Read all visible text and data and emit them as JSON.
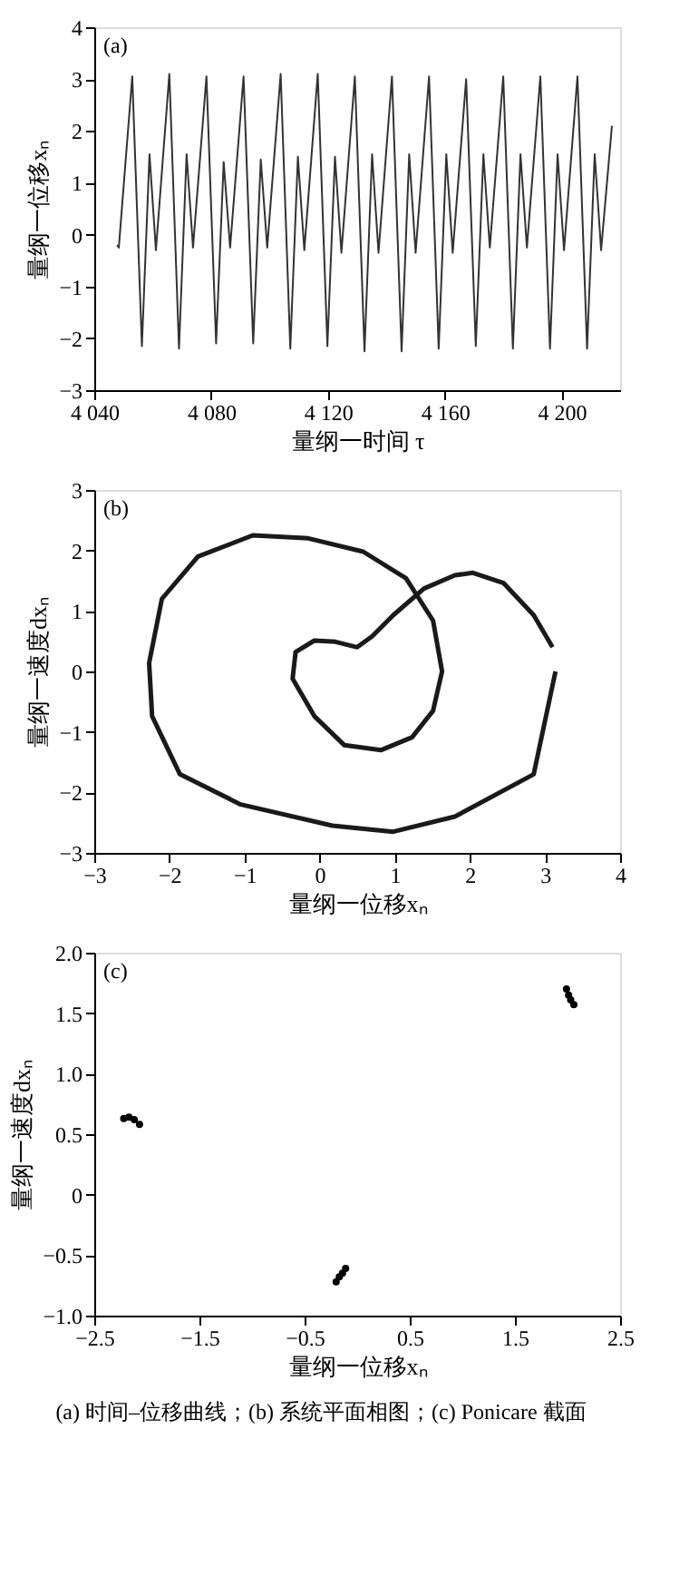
{
  "chart_data": [
    {
      "type": "line",
      "xlabel": "量纲一时间 τ",
      "ylabel": "量纲一位移xₙ",
      "annotations": [
        "(a)"
      ],
      "xlim": [
        4040,
        4220
      ],
      "ylim": [
        -3,
        4
      ],
      "xticks": [
        {
          "value": 4040,
          "label": "4 040"
        },
        {
          "value": 4080,
          "label": "4 080"
        },
        {
          "value": 4120,
          "label": "4 120"
        },
        {
          "value": 4160,
          "label": "4 160"
        },
        {
          "value": 4200,
          "label": "4 200"
        }
      ],
      "yticks": [
        -3,
        -2,
        -1,
        0,
        1,
        2,
        3,
        4
      ],
      "marker": "none",
      "line_style": "solid",
      "series": [
        {
          "color": "#333333",
          "x": [
            4047.8,
            4048.4,
            4053.0,
            4056.3,
            4058.9,
            4061.1,
            4065.7,
            4069.0,
            4071.6,
            4073.8,
            4078.4,
            4081.7,
            4084.3,
            4086.5,
            4091.1,
            4094.4,
            4097.0,
            4099.2,
            4103.8,
            4107.1,
            4109.7,
            4111.9,
            4116.5,
            4119.8,
            4122.4,
            4124.6,
            4129.2,
            4132.5,
            4135.1,
            4137.3,
            4141.9,
            4145.2,
            4147.8,
            4150.0,
            4154.6,
            4157.9,
            4160.5,
            4162.7,
            4167.3,
            4170.6,
            4173.2,
            4175.4,
            4180.0,
            4183.3,
            4185.9,
            4188.1,
            4192.7,
            4196.0,
            4198.6,
            4200.8,
            4205.4,
            4208.7,
            4211.3,
            4213.5,
            4217.2
          ],
          "values": [
            -0.2,
            -0.25,
            3.05,
            -2.15,
            1.55,
            -0.3,
            3.1,
            -2.2,
            1.55,
            -0.25,
            3.05,
            -2.1,
            1.4,
            -0.25,
            3.05,
            -2.1,
            1.45,
            -0.25,
            3.1,
            -2.2,
            1.5,
            -0.3,
            3.1,
            -2.15,
            1.5,
            -0.35,
            3.05,
            -2.25,
            1.55,
            -0.35,
            3.05,
            -2.25,
            1.55,
            -0.35,
            3.05,
            -2.2,
            1.55,
            -0.35,
            3.0,
            -2.15,
            1.55,
            -0.25,
            3.05,
            -2.2,
            1.55,
            -0.25,
            3.05,
            -2.2,
            1.55,
            -0.3,
            3.05,
            -2.2,
            1.55,
            -0.3,
            2.1
          ]
        }
      ]
    },
    {
      "type": "line",
      "xlabel": "量纲一位移xₙ",
      "ylabel": "量纲一速度dxₙ",
      "annotations": [
        "(b)"
      ],
      "xlim": [
        -3,
        4
      ],
      "ylim": [
        -3,
        3
      ],
      "xticks": [
        -3,
        -2,
        -1,
        0,
        1,
        2,
        3,
        4
      ],
      "yticks": [
        -3,
        -2,
        -1,
        0,
        1,
        2,
        3
      ],
      "marker": "none",
      "line_style": "solid",
      "series": [
        {
          "color": "#1a1a1a",
          "x": [
            3.14,
            2.85,
            1.8,
            0.98,
            0.17,
            -1.05,
            -1.86,
            -2.23,
            -2.27,
            -2.1,
            -1.62,
            -0.89,
            -0.15,
            0.58,
            1.15,
            1.51,
            1.63,
            1.51,
            1.23,
            0.82,
            0.33,
            -0.07,
            -0.36,
            -0.32,
            -0.07,
            0.21,
            0.5,
            0.7,
            0.98,
            1.39,
            1.8,
            2.04,
            2.45,
            2.85,
            3.1
          ],
          "values": [
            0,
            -1.7,
            -2.4,
            -2.65,
            -2.55,
            -2.2,
            -1.7,
            -0.74,
            0.14,
            1.2,
            1.9,
            2.25,
            2.2,
            1.98,
            1.54,
            0.84,
            0,
            -0.65,
            -1.09,
            -1.3,
            -1.22,
            -0.74,
            -0.12,
            0.32,
            0.51,
            0.49,
            0.4,
            0.58,
            0.93,
            1.37,
            1.59,
            1.63,
            1.46,
            0.93,
            0.4
          ]
        }
      ]
    },
    {
      "type": "scatter",
      "xlabel": "量纲一位移xₙ",
      "ylabel": "量纲一速度dxₙ",
      "annotations": [
        "(c)",
        "(a) 时间–位移曲线；(b) 系统平面相图；(c) Ponicare 截面"
      ],
      "xlim": [
        -2.5,
        2.5
      ],
      "ylim": [
        -1,
        2
      ],
      "xticks": [
        -2.5,
        -1.5,
        -0.5,
        0.5,
        1.5,
        2.5
      ],
      "yticks": [
        {
          "value": -1,
          "label": "−1.0"
        },
        -0.5,
        0,
        0.5,
        {
          "value": 1,
          "label": "1.0"
        },
        1.5,
        {
          "value": 2,
          "label": "2.0"
        }
      ],
      "marker": "circle",
      "series": [
        {
          "color": "#000000",
          "x": [
            -2.22,
            -2.17,
            -2.12,
            -2.07,
            -0.11,
            -0.14,
            -0.17,
            -0.2,
            1.99,
            2.01,
            2.03,
            2.06
          ],
          "values": [
            0.63,
            0.64,
            0.62,
            0.58,
            -0.61,
            -0.65,
            -0.68,
            -0.72,
            1.7,
            1.65,
            1.61,
            1.57
          ]
        }
      ]
    }
  ]
}
